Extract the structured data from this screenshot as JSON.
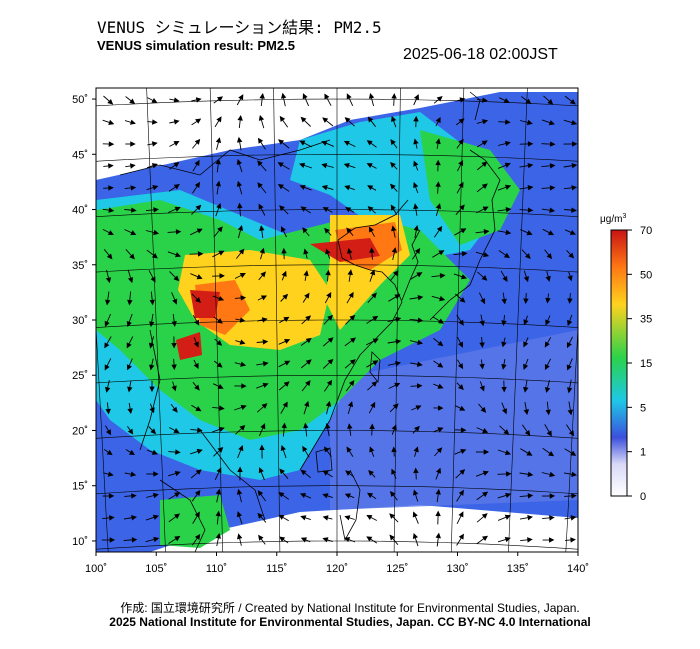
{
  "header": {
    "title_jp": "VENUS シミュレーション結果: PM2.5",
    "title_en": "VENUS simulation result: PM2.5",
    "timestamp": "2025-06-18 02:00JST"
  },
  "map": {
    "lat_labels": [
      "50˚",
      "45˚",
      "40˚",
      "35˚",
      "30˚",
      "25˚",
      "20˚",
      "15˚",
      "10˚"
    ],
    "lon_labels": [
      "100˚",
      "105˚",
      "110˚",
      "115˚",
      "120˚",
      "125˚",
      "130˚",
      "135˚",
      "140˚"
    ],
    "lat_values": [
      50,
      45,
      40,
      35,
      30,
      25,
      20,
      15,
      10
    ],
    "lon_values": [
      100,
      105,
      110,
      115,
      120,
      125,
      130,
      135,
      140
    ]
  },
  "colorbar": {
    "unit_base": "μg/m",
    "unit_exp": "3",
    "ticks": [
      "70",
      "50",
      "35",
      "15",
      "5",
      "1",
      "0"
    ],
    "colors": [
      "#d8d8f8",
      "#3c50dc",
      "#1ec8e6",
      "#2ad24a",
      "#ffd21e",
      "#ff7814",
      "#c81414"
    ]
  },
  "footer": {
    "credit": "作成: 国立環境研究所 / Created by National Institute for Environmental Studies, Japan.",
    "copyright": "2025 National Institute for Environmental Studies, Japan. CC BY-NC 4.0 International"
  }
}
